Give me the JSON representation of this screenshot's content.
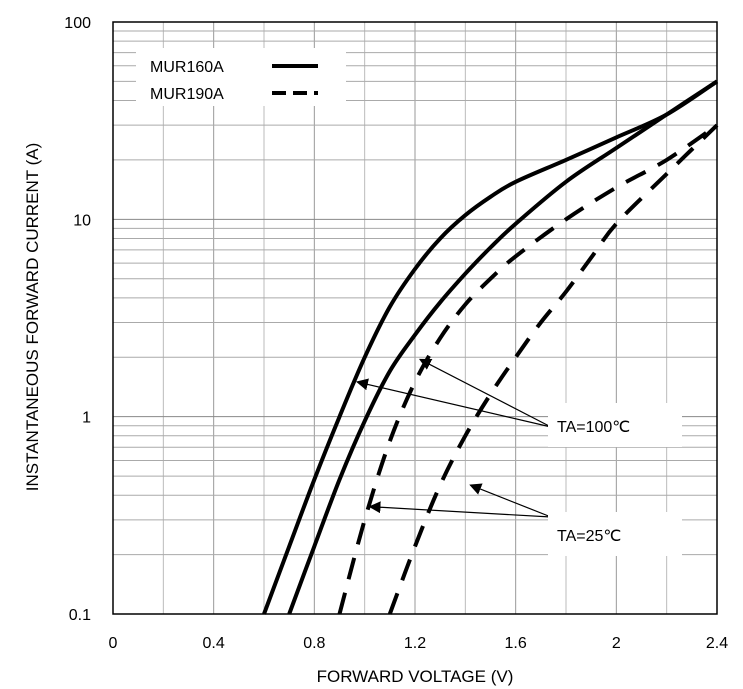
{
  "chart_data": {
    "type": "line",
    "xlabel": "FORWARD VOLTAGE (V)",
    "ylabel": "INSTANTANEOUS FORWARD CURRENT (A)",
    "xlim": [
      0,
      2.4
    ],
    "ylim": [
      0.1,
      100
    ],
    "y_scale": "log",
    "grid": true,
    "x_ticks": [
      "0",
      "0.4",
      "0.8",
      "1.2",
      "1.6",
      "2",
      "2.4"
    ],
    "y_ticks": [
      "0.1",
      "1",
      "10",
      "100"
    ],
    "legend_position": "top-left",
    "series": [
      {
        "name": "MUR160A",
        "style": "solid",
        "condition": "TA=100℃",
        "x": [
          0.6,
          0.7,
          0.8,
          0.9,
          1.0,
          1.1,
          1.2,
          1.3,
          1.4,
          1.5,
          1.6,
          1.8,
          2.0,
          2.2,
          2.4
        ],
        "y": [
          0.1,
          0.22,
          0.48,
          1.0,
          2.0,
          3.6,
          5.6,
          8.0,
          10.5,
          13.0,
          15.5,
          20.0,
          26.0,
          34.0,
          50.0
        ]
      },
      {
        "name": "MUR160A",
        "style": "solid",
        "condition": "TA=25℃",
        "x": [
          0.7,
          0.8,
          0.9,
          1.0,
          1.1,
          1.2,
          1.3,
          1.4,
          1.5,
          1.6,
          1.8,
          2.0,
          2.2,
          2.4
        ],
        "y": [
          0.1,
          0.22,
          0.48,
          0.95,
          1.7,
          2.6,
          3.8,
          5.3,
          7.2,
          9.5,
          15.5,
          23.0,
          34.0,
          50.0
        ]
      },
      {
        "name": "MUR190A",
        "style": "dashed",
        "condition": "TA=100℃",
        "x": [
          0.9,
          1.0,
          1.1,
          1.2,
          1.3,
          1.4,
          1.5,
          1.6,
          1.8,
          2.0,
          2.2,
          2.4
        ],
        "y": [
          0.1,
          0.3,
          0.75,
          1.5,
          2.5,
          3.7,
          5.0,
          6.5,
          10.0,
          14.5,
          20.0,
          30.0
        ]
      },
      {
        "name": "MUR190A",
        "style": "dashed",
        "condition": "TA=25℃",
        "x": [
          1.1,
          1.2,
          1.3,
          1.4,
          1.5,
          1.6,
          1.7,
          1.8,
          1.9,
          2.0,
          2.2,
          2.4
        ],
        "y": [
          0.1,
          0.22,
          0.45,
          0.8,
          1.3,
          2.0,
          3.0,
          4.3,
          6.4,
          9.5,
          17.0,
          30.0
        ]
      }
    ],
    "legend": [
      {
        "label": "MUR160A",
        "style": "solid"
      },
      {
        "label": "MUR190A",
        "style": "dashed"
      }
    ],
    "annotations": [
      {
        "text": "TA=100℃",
        "targets": [
          [
            0.97,
            1.5
          ],
          [
            1.22,
            1.95
          ]
        ]
      },
      {
        "text": "TA=25℃",
        "targets": [
          [
            1.02,
            0.35
          ],
          [
            1.42,
            0.45
          ]
        ]
      }
    ]
  }
}
